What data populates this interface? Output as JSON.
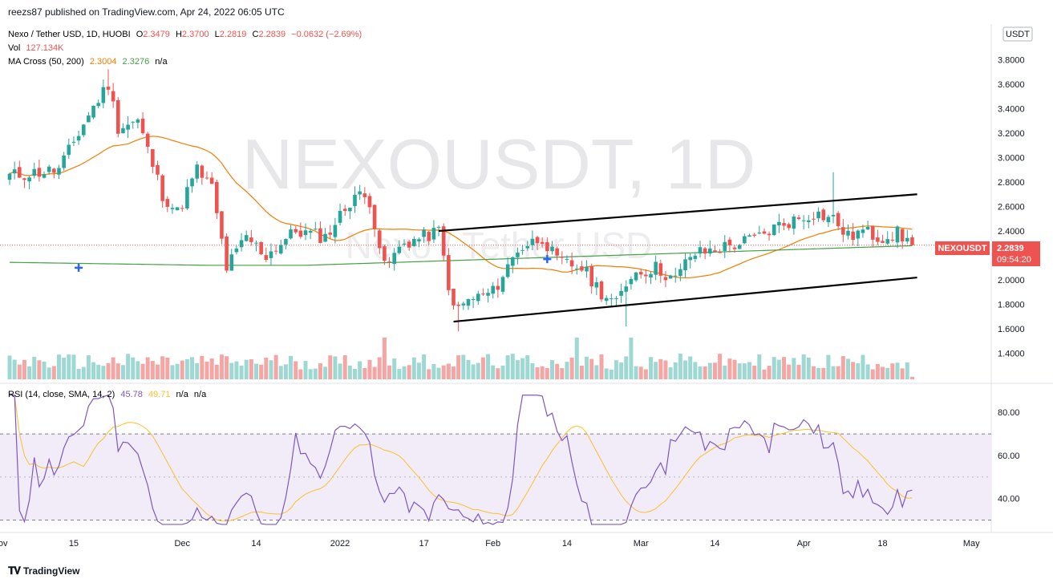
{
  "header": {
    "published": "reezs87 published on TradingView.com, Apr 24, 2022 06:05 UTC"
  },
  "legend": {
    "symbol": "Nexo / Tether USD, 1D, HUOBI",
    "o_label": "O",
    "o": "2.3479",
    "h_label": "H",
    "h": "2.3700",
    "l_label": "L",
    "l": "2.2819",
    "c_label": "C",
    "c": "2.2839",
    "change": "−0.0632 (−2.69%)",
    "vol_label": "Vol",
    "vol": "127.134K",
    "ma_label": "MA Cross (50, 200)",
    "ma50": "2.3004",
    "ma200": "2.3276",
    "ma_na": "n/a",
    "rsi_label": "RSI (14, close, SMA, 14, 2)",
    "rsi": "45.78",
    "rsi_ma": "49.71",
    "rsi_na1": "n/a",
    "rsi_na2": "n/a"
  },
  "watermark": {
    "line1": "NEXOUSDT, 1D",
    "line2": "Nexo / Tether USD"
  },
  "price_axis": {
    "currency": "USDT",
    "ticks": [
      "3.8000",
      "3.6000",
      "3.4000",
      "3.2000",
      "3.0000",
      "2.8000",
      "2.6000",
      "2.4000",
      "2.2000",
      "2.0000",
      "1.8000",
      "1.6000",
      "1.4000"
    ],
    "tick_values": [
      3.8,
      3.6,
      3.4,
      3.2,
      3.0,
      2.8,
      2.6,
      2.4,
      2.2,
      2.0,
      1.8,
      1.6,
      1.4
    ],
    "label_symbol": "NEXOUSDT",
    "label_price": "2.2839",
    "label_countdown": "09:54:20"
  },
  "rsi_axis": {
    "ticks": [
      "80.00",
      "60.00",
      "40.00"
    ],
    "tick_values": [
      80,
      60,
      40
    ],
    "upper_band": 70,
    "lower_band": 30
  },
  "time_axis": {
    "labels": [
      "Nov",
      "15",
      "Dec",
      "14",
      "2022",
      "17",
      "Feb",
      "14",
      "Mar",
      "14",
      "Apr",
      "18",
      "May"
    ],
    "indices": [
      -2,
      13,
      35,
      50,
      67,
      84,
      98,
      113,
      128,
      143,
      161,
      177,
      195
    ]
  },
  "footer": {
    "brand": "TradingView"
  },
  "colors": {
    "up": "#26a69a",
    "down": "#ef5350",
    "ma50": "#f57c00",
    "ma200": "#43a047",
    "rsi": "#7e57c2",
    "rsi_ma": "#fbc02d",
    "band": "#7e57c2",
    "trend": "#000000"
  },
  "chart_data": {
    "type": "candlestick",
    "instrument": "Nexo / Tether USD",
    "exchange": "HUOBI",
    "interval": "1D",
    "y_range": [
      1.3,
      3.92
    ],
    "x_start": "2021-10-28",
    "bar_count": 184,
    "last_bar": {
      "o": 2.3479,
      "h": 2.37,
      "l": 2.2819,
      "c": 2.2839
    },
    "key_levels": [
      {
        "i": 0,
        "p": 2.85
      },
      {
        "i": 10,
        "p": 2.9
      },
      {
        "i": 16,
        "p": 3.35
      },
      {
        "i": 20,
        "p": 3.6
      },
      {
        "i": 22,
        "p": 3.25
      },
      {
        "i": 26,
        "p": 3.3
      },
      {
        "i": 31,
        "p": 2.7
      },
      {
        "i": 34,
        "p": 2.55
      },
      {
        "i": 38,
        "p": 2.9
      },
      {
        "i": 41,
        "p": 2.75
      },
      {
        "i": 44,
        "p": 2.1
      },
      {
        "i": 48,
        "p": 2.35
      },
      {
        "i": 52,
        "p": 2.2
      },
      {
        "i": 58,
        "p": 2.4
      },
      {
        "i": 64,
        "p": 2.35
      },
      {
        "i": 70,
        "p": 2.7
      },
      {
        "i": 73,
        "p": 2.65
      },
      {
        "i": 76,
        "p": 2.1
      },
      {
        "i": 80,
        "p": 2.3
      },
      {
        "i": 84,
        "p": 2.35
      },
      {
        "i": 87,
        "p": 2.4
      },
      {
        "i": 90,
        "p": 1.75
      },
      {
        "i": 94,
        "p": 1.85
      },
      {
        "i": 98,
        "p": 1.9
      },
      {
        "i": 103,
        "p": 2.25
      },
      {
        "i": 108,
        "p": 2.35
      },
      {
        "i": 111,
        "p": 2.15
      },
      {
        "i": 116,
        "p": 2.1
      },
      {
        "i": 120,
        "p": 1.9
      },
      {
        "i": 123,
        "p": 1.8
      },
      {
        "i": 126,
        "p": 2.05
      },
      {
        "i": 131,
        "p": 2.1
      },
      {
        "i": 135,
        "p": 2.0
      },
      {
        "i": 138,
        "p": 2.2
      },
      {
        "i": 143,
        "p": 2.25
      },
      {
        "i": 148,
        "p": 2.3
      },
      {
        "i": 152,
        "p": 2.35
      },
      {
        "i": 156,
        "p": 2.45
      },
      {
        "i": 160,
        "p": 2.5
      },
      {
        "i": 163,
        "p": 2.55
      },
      {
        "i": 167,
        "p": 2.5
      },
      {
        "i": 170,
        "p": 2.35
      },
      {
        "i": 173,
        "p": 2.4
      },
      {
        "i": 176,
        "p": 2.35
      },
      {
        "i": 180,
        "p": 2.38
      },
      {
        "i": 183,
        "p": 2.28
      }
    ],
    "ma_cross": [
      {
        "i": 14,
        "p": 2.1
      },
      {
        "i": 109,
        "p": 2.17
      }
    ],
    "trendlines": [
      {
        "from": {
          "i": 87,
          "p": 2.4
        },
        "to": {
          "i": 184,
          "p": 2.7
        }
      },
      {
        "from": {
          "i": 90,
          "p": 1.66
        },
        "to": {
          "i": 184,
          "p": 2.02
        }
      }
    ],
    "rsi_range": [
      25,
      92
    ]
  }
}
